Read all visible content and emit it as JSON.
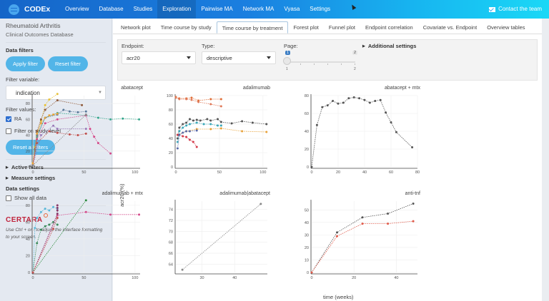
{
  "topbar": {
    "brand": "CODEx",
    "nav": [
      "Overview",
      "Database",
      "Studies",
      "Exploration",
      "Pairwise MA",
      "Network MA",
      "Vyasa",
      "Settings"
    ],
    "active_nav": "Exploration",
    "contact": "Contact the team"
  },
  "sidebar": {
    "title": "Rheumatoid Arthritis",
    "subtitle": "Clinical Outcomes Database",
    "data_filters_label": "Data filters",
    "apply_filter": "Apply filter",
    "reset_filter": "Reset filter",
    "filter_variable_label": "Filter variable:",
    "filter_variable_value": "indication",
    "filter_values_label": "Filter values:",
    "filter_values": [
      {
        "label": "RA",
        "checked": true
      }
    ],
    "filter_study_level": {
      "label": "Filter on study-level",
      "checked": false
    },
    "reset_all": "Reset all filters",
    "active_filters": "Active filters",
    "measure_settings": "Measure settings",
    "data_settings_label": "Data settings",
    "show_all_data": {
      "label": "Show all data",
      "checked": false
    },
    "logo_text": "CERTARA",
    "hint": "Use Ctrl + or - to adjust the interface formatting to your screen."
  },
  "tabs": {
    "items": [
      "Network plot",
      "Time course by study",
      "Time course by treatment",
      "Forest plot",
      "Funnel plot",
      "Endpoint correlation",
      "Covariate vs. Endpoint",
      "Overview tables"
    ],
    "active": "Time course by treatment"
  },
  "settings": {
    "endpoint_label": "Endpoint:",
    "endpoint_value": "acr20",
    "type_label": "Type:",
    "type_value": "descriptive",
    "page_label": "Page:",
    "page_value": "1",
    "page_max": "2",
    "page_min_tick": "1",
    "page_max_tick": "2",
    "additional_settings": "Additional settings"
  },
  "axes": {
    "ylabel": "acr20 (%)",
    "xlabel": "time (weeks)"
  },
  "chart_data": [
    {
      "type": "line",
      "title": "abatacept",
      "xlim": [
        0,
        105
      ],
      "ylim": [
        0,
        90
      ],
      "xticks": [
        0,
        50,
        100
      ],
      "yticks": [
        0,
        20,
        40,
        60,
        80
      ],
      "series": [
        {
          "name": "s1",
          "color": "#e8c23a",
          "x": [
            0,
            2,
            4,
            8,
            12,
            16,
            24
          ],
          "y": [
            5,
            25,
            40,
            58,
            78,
            85,
            92
          ]
        },
        {
          "name": "s2",
          "color": "#8e5a3a",
          "x": [
            0,
            2,
            4,
            8,
            12,
            24,
            48
          ],
          "y": [
            3,
            22,
            45,
            60,
            72,
            84,
            78
          ]
        },
        {
          "name": "s3",
          "color": "#3aa88e",
          "x": [
            0,
            2,
            4,
            12,
            24,
            52,
            64,
            76,
            88,
            104
          ],
          "y": [
            2,
            20,
            38,
            62,
            68,
            65,
            62,
            60,
            61,
            60
          ]
        },
        {
          "name": "s4",
          "color": "#5a7a9a",
          "x": [
            0,
            4,
            12,
            24,
            30,
            36,
            44,
            52
          ],
          "y": [
            3,
            40,
            62,
            66,
            72,
            70,
            69,
            70
          ]
        },
        {
          "name": "s5",
          "color": "#d44a8a",
          "x": [
            0,
            4,
            12,
            24,
            52,
            56,
            60,
            64,
            76
          ],
          "y": [
            3,
            35,
            55,
            60,
            65,
            48,
            38,
            30,
            17
          ]
        },
        {
          "name": "s6",
          "color": "#c0504d",
          "x": [
            0,
            4,
            16,
            24,
            36,
            44,
            52
          ],
          "y": [
            2,
            30,
            45,
            43,
            41,
            40,
            42
          ]
        },
        {
          "name": "s7",
          "color": "#9a7ab8",
          "x": [
            0,
            8,
            20,
            24,
            52
          ],
          "y": [
            2,
            40,
            52,
            48,
            48
          ]
        },
        {
          "name": "s8",
          "color": "#e8a23a",
          "x": [
            0,
            4,
            8,
            12,
            16,
            20,
            24
          ],
          "y": [
            4,
            42,
            55,
            62,
            65,
            66,
            67
          ]
        },
        {
          "name": "s9",
          "color": "#888888",
          "x": [
            0,
            52
          ],
          "y": [
            2,
            66
          ]
        }
      ]
    },
    {
      "type": "line",
      "title": "adalimumab",
      "xlim": [
        0,
        105
      ],
      "ylim": [
        0,
        100
      ],
      "xticks": [
        0,
        50,
        100
      ],
      "yticks": [
        0,
        20,
        40,
        60,
        80,
        100
      ],
      "series": [
        {
          "name": "s1",
          "color": "#e0703a",
          "x": [
            0,
            4,
            12,
            18,
            26,
            40,
            52
          ],
          "y": [
            98,
            96,
            96,
            97,
            93,
            95,
            95
          ]
        },
        {
          "name": "s2",
          "color": "#e07a5a",
          "x": [
            0,
            4,
            12,
            18,
            26,
            40,
            52
          ],
          "y": [
            97,
            95,
            95,
            94,
            91,
            88,
            85
          ]
        },
        {
          "name": "s3",
          "color": "#555555",
          "x": [
            2,
            4,
            8,
            12,
            16,
            20,
            24,
            28,
            36,
            40,
            48,
            52,
            64,
            76,
            88,
            104
          ],
          "y": [
            40,
            55,
            60,
            62,
            67,
            65,
            66,
            65,
            67,
            65,
            67,
            63,
            61,
            64,
            62,
            60
          ]
        },
        {
          "name": "s4",
          "color": "#3aa8b8",
          "x": [
            2,
            4,
            8,
            12,
            16,
            24,
            32,
            40,
            48,
            52
          ],
          "y": [
            35,
            50,
            55,
            58,
            60,
            62,
            60,
            60,
            58,
            58
          ]
        },
        {
          "name": "s5",
          "color": "#e8a23a",
          "x": [
            2,
            12,
            24,
            40,
            52,
            76,
            104
          ],
          "y": [
            45,
            50,
            53,
            53,
            54,
            50,
            49
          ]
        },
        {
          "name": "s6",
          "color": "#d43a4a",
          "x": [
            2,
            4,
            8,
            12,
            16,
            20,
            24
          ],
          "y": [
            45,
            45,
            43,
            42,
            38,
            35,
            28
          ]
        },
        {
          "name": "s7",
          "color": "#5a6aa8",
          "x": [
            2,
            4,
            8,
            12,
            16,
            24
          ],
          "y": [
            26,
            45,
            48,
            50,
            50,
            51
          ]
        }
      ]
    },
    {
      "type": "line",
      "title": "abatacept + mtx",
      "xlim": [
        0,
        80
      ],
      "ylim": [
        0,
        80
      ],
      "xticks": [
        0,
        20,
        40,
        60,
        80
      ],
      "yticks": [
        0,
        20,
        40,
        60,
        80
      ],
      "series": [
        {
          "name": "s1",
          "color": "#555555",
          "x": [
            0,
            4,
            8,
            12,
            16,
            20,
            24,
            28,
            32,
            36,
            40,
            44,
            48,
            52,
            56,
            60,
            64,
            76
          ],
          "y": [
            0,
            47,
            67,
            69,
            74,
            71,
            72,
            77,
            78,
            77,
            75,
            72,
            74,
            75,
            61,
            50,
            39,
            22
          ]
        }
      ]
    },
    {
      "type": "line",
      "title": "adalimumab + mtx",
      "xlim": [
        0,
        105
      ],
      "ylim": [
        0,
        85
      ],
      "xticks": [
        0,
        50,
        100
      ],
      "yticks": [
        0,
        20,
        40,
        60,
        80
      ],
      "series": [
        {
          "name": "s1",
          "color": "#5ab8d8",
          "x": [
            0,
            2,
            4,
            8,
            12,
            16,
            20,
            24
          ],
          "y": [
            0,
            53,
            65,
            72,
            76,
            74,
            78,
            76
          ]
        },
        {
          "name": "s2",
          "color": "#3a8a5a",
          "x": [
            0,
            4,
            8,
            12,
            16,
            20,
            24
          ],
          "y": [
            0,
            35,
            51,
            55,
            57,
            60,
            57
          ]
        },
        {
          "name": "s3",
          "color": "#d44a8a",
          "x": [
            0,
            24,
            52,
            76,
            104
          ],
          "y": [
            0,
            68,
            72,
            69,
            69
          ]
        },
        {
          "name": "s4",
          "color": "#2a8a3a",
          "x": [
            0,
            52
          ],
          "y": [
            0,
            86
          ]
        },
        {
          "name": "s5",
          "color": "#8a3a6a",
          "x": [
            0,
            24,
            24,
            24,
            24
          ],
          "y": [
            0,
            70,
            74,
            77,
            80
          ]
        },
        {
          "name": "s6",
          "color": "#c0504d",
          "x": [
            0,
            20,
            24
          ],
          "y": [
            0,
            52,
            65
          ]
        }
      ]
    },
    {
      "type": "line",
      "title": "adalimumab|abatacept",
      "xlim": [
        22,
        50
      ],
      "ylim": [
        62.5,
        75.5
      ],
      "xticks": [
        30,
        40
      ],
      "yticks": [
        64,
        66,
        68,
        70,
        72,
        74
      ],
      "series": [
        {
          "name": "s1",
          "color": "#888888",
          "x": [
            24,
            48
          ],
          "y": [
            63,
            75
          ]
        }
      ]
    },
    {
      "type": "line",
      "title": "anti-tnf",
      "xlim": [
        0,
        50
      ],
      "ylim": [
        0,
        57
      ],
      "xticks": [
        0,
        20,
        40
      ],
      "yticks": [
        0,
        10,
        20,
        30,
        40,
        50
      ],
      "series": [
        {
          "name": "s1",
          "color": "#555555",
          "x": [
            0,
            12,
            24,
            36,
            48
          ],
          "y": [
            0,
            32,
            44,
            47,
            55
          ]
        },
        {
          "name": "s2",
          "color": "#e05a4a",
          "x": [
            0,
            12,
            24,
            36,
            48
          ],
          "y": [
            0,
            29,
            39,
            39,
            41
          ]
        }
      ]
    }
  ]
}
